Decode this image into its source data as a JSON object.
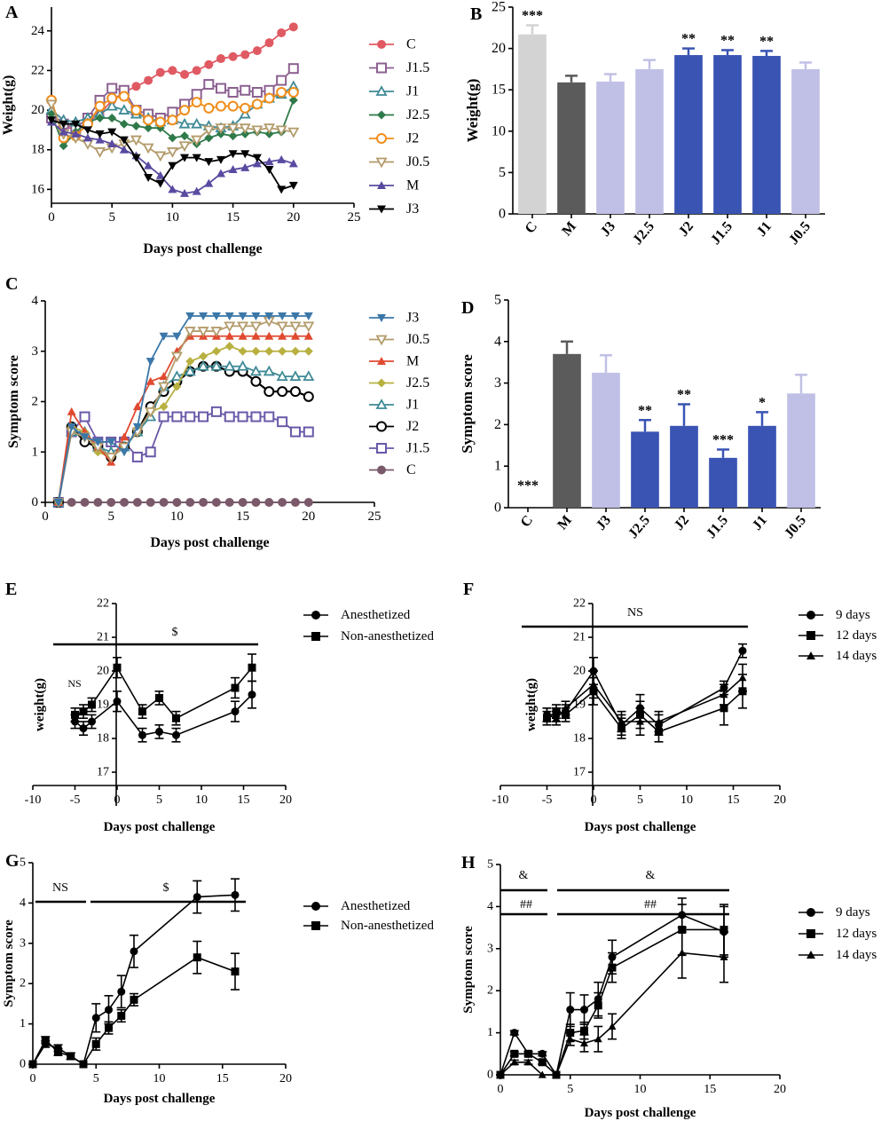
{
  "colors": {
    "C": "#e05a63",
    "J1.5": "#8b6090",
    "J1": "#3f8a96",
    "J2.5": "#2f7a4a",
    "J2": "#f08d1a",
    "J0.5": "#b39b6b",
    "M": "#5a4aa0",
    "J3": "#000000",
    "J3C": "#3b77a8",
    "J1.5C": "#6a58a8",
    "CC": "#7a5a6a",
    "barLight": "#c0c0e6",
    "barDark": "#3a54b3",
    "barGrey": "#d3d3d3",
    "barM": "#5b5b5b"
  },
  "chart_data": [
    {
      "panel": "A",
      "type": "line",
      "xlabel": "Days post challenge",
      "ylabel": "Weight(g)",
      "xlim": [
        0,
        25
      ],
      "ylim": [
        15.3,
        25.2
      ],
      "xticks": [
        0,
        5,
        10,
        15,
        20,
        25
      ],
      "yticks": [
        16,
        18,
        20,
        22,
        24
      ],
      "legend": [
        "C",
        "J1.5",
        "J1",
        "J2.5",
        "J2",
        "J0.5",
        "M",
        "J3"
      ],
      "markers": [
        "circle",
        "square",
        "triangle",
        "diamond",
        "circle-open",
        "triangle-down-open",
        "triangle",
        "triangle-down"
      ],
      "x": [
        0,
        1,
        2,
        3,
        4,
        5,
        6,
        7,
        8,
        9,
        10,
        11,
        12,
        13,
        14,
        15,
        16,
        17,
        18,
        19,
        20
      ],
      "series": [
        {
          "name": "C",
          "values": [
            19.7,
            19.2,
            19.0,
            19.4,
            19.8,
            20.5,
            20.9,
            21.2,
            21.5,
            21.9,
            22.0,
            21.8,
            22.0,
            22.3,
            22.6,
            22.7,
            22.8,
            23.0,
            23.4,
            23.9,
            24.2
          ]
        },
        {
          "name": "J1.5",
          "values": [
            19.6,
            19.3,
            19.1,
            19.6,
            20.5,
            21.1,
            21.0,
            20.0,
            19.8,
            19.6,
            19.9,
            20.3,
            20.8,
            21.3,
            21.1,
            20.9,
            21.0,
            20.9,
            21.0,
            21.5,
            22.1
          ]
        },
        {
          "name": "J1",
          "values": [
            20.0,
            19.5,
            19.4,
            19.6,
            19.8,
            20.2,
            20.0,
            19.8,
            19.6,
            19.4,
            19.5,
            19.3,
            19.3,
            19.2,
            19.1,
            19.2,
            19.8,
            20.3,
            20.6,
            20.8,
            21.2
          ]
        },
        {
          "name": "J2.5",
          "values": [
            19.8,
            18.2,
            18.9,
            19.4,
            19.6,
            19.6,
            19.3,
            19.2,
            19.1,
            19.1,
            18.6,
            18.7,
            18.3,
            18.6,
            18.8,
            18.7,
            18.8,
            18.9,
            18.8,
            18.9,
            20.5
          ]
        },
        {
          "name": "J2",
          "values": [
            20.5,
            18.6,
            18.7,
            19.3,
            20.2,
            20.6,
            20.7,
            20.0,
            19.5,
            19.4,
            19.5,
            20.0,
            20.4,
            20.1,
            20.2,
            20.2,
            20.1,
            20.3,
            20.6,
            20.9,
            20.9
          ]
        },
        {
          "name": "J0.5",
          "values": [
            20.3,
            18.8,
            18.6,
            18.3,
            17.9,
            18.1,
            18.3,
            18.5,
            18.1,
            17.7,
            17.9,
            18.2,
            18.5,
            19.0,
            19.1,
            19.1,
            19.1,
            19.0,
            19.1,
            19.0,
            18.9
          ]
        },
        {
          "name": "M",
          "values": [
            19.4,
            18.9,
            18.8,
            18.6,
            18.5,
            18.3,
            18.0,
            17.7,
            17.2,
            16.7,
            16.0,
            15.8,
            15.9,
            16.3,
            16.8,
            17.0,
            17.1,
            17.3,
            17.4,
            17.5,
            17.3
          ]
        },
        {
          "name": "J3",
          "values": [
            19.5,
            19.3,
            19.3,
            19.0,
            18.8,
            18.9,
            18.5,
            17.6,
            16.6,
            16.3,
            17.2,
            17.6,
            17.6,
            17.4,
            17.5,
            17.8,
            17.8,
            17.6,
            17.0,
            16.0,
            16.2
          ]
        }
      ]
    },
    {
      "panel": "B",
      "type": "bar",
      "ylabel": "Weight(g)",
      "ylim": [
        0,
        25
      ],
      "yticks": [
        0,
        5,
        10,
        15,
        20,
        25
      ],
      "categories": [
        "C",
        "M",
        "J3",
        "J2.5",
        "J2",
        "J1.5",
        "J1",
        "J0.5"
      ],
      "values": [
        21.7,
        15.9,
        16.0,
        17.5,
        19.2,
        19.2,
        19.1,
        17.5
      ],
      "errors": [
        1.1,
        0.8,
        0.9,
        1.1,
        0.8,
        0.6,
        0.6,
        0.8
      ],
      "annotations": [
        "***",
        "",
        "",
        "",
        "**",
        "**",
        "**",
        ""
      ]
    },
    {
      "panel": "C",
      "type": "line",
      "xlabel": "Days post challenge",
      "ylabel": "Symptom score",
      "xlim": [
        0,
        25
      ],
      "ylim": [
        0,
        4
      ],
      "xticks": [
        0,
        5,
        10,
        15,
        20,
        25
      ],
      "yticks": [
        0,
        1,
        2,
        3,
        4
      ],
      "legend": [
        "J3",
        "J0.5",
        "M",
        "J2.5",
        "J1",
        "J2",
        "J1.5",
        "C"
      ],
      "x": [
        1,
        2,
        3,
        4,
        5,
        6,
        7,
        8,
        9,
        10,
        11,
        12,
        13,
        14,
        15,
        16,
        17,
        18,
        19,
        20
      ],
      "series": [
        {
          "name": "J3",
          "values": [
            0,
            1.5,
            1.3,
            1.2,
            1.2,
            1.0,
            1.5,
            2.8,
            3.3,
            3.3,
            3.7,
            3.7,
            3.7,
            3.7,
            3.7,
            3.7,
            3.7,
            3.7,
            3.7,
            3.7
          ]
        },
        {
          "name": "J0.5",
          "values": [
            0,
            1.4,
            1.3,
            1.1,
            0.9,
            1.1,
            1.4,
            1.8,
            2.3,
            2.9,
            3.4,
            3.4,
            3.4,
            3.5,
            3.5,
            3.5,
            3.6,
            3.5,
            3.5,
            3.5
          ]
        },
        {
          "name": "M",
          "values": [
            0,
            1.8,
            1.4,
            1.1,
            0.8,
            1.3,
            1.9,
            2.4,
            2.5,
            3.0,
            3.3,
            3.3,
            3.3,
            3.3,
            3.3,
            3.3,
            3.3,
            3.3,
            3.3,
            3.3
          ]
        },
        {
          "name": "J2.5",
          "values": [
            0,
            1.5,
            1.4,
            1.0,
            0.9,
            1.1,
            1.4,
            1.8,
            1.9,
            2.3,
            2.8,
            2.9,
            3.0,
            3.1,
            3.0,
            3.0,
            3.0,
            3.0,
            3.0,
            3.0
          ]
        },
        {
          "name": "J1",
          "values": [
            0,
            1.4,
            1.4,
            1.1,
            1.0,
            1.1,
            1.4,
            1.7,
            2.3,
            2.5,
            2.6,
            2.7,
            2.7,
            2.7,
            2.7,
            2.6,
            2.6,
            2.5,
            2.5,
            2.5
          ]
        },
        {
          "name": "J2",
          "values": [
            0,
            1.5,
            1.2,
            1.1,
            0.9,
            1.1,
            1.4,
            1.9,
            2.2,
            2.4,
            2.6,
            2.7,
            2.7,
            2.6,
            2.6,
            2.4,
            2.2,
            2.2,
            2.2,
            2.1
          ]
        },
        {
          "name": "J1.5",
          "values": [
            0,
            1.4,
            1.7,
            1.2,
            1.2,
            1.2,
            0.9,
            1.0,
            1.7,
            1.7,
            1.7,
            1.7,
            1.8,
            1.7,
            1.7,
            1.7,
            1.7,
            1.6,
            1.4,
            1.4
          ]
        },
        {
          "name": "C",
          "values": [
            0,
            0,
            0,
            0,
            0,
            0,
            0,
            0,
            0,
            0,
            0,
            0,
            0,
            0,
            0,
            0,
            0,
            0,
            0,
            0
          ]
        }
      ]
    },
    {
      "panel": "D",
      "type": "bar",
      "ylabel": "Symptom score",
      "ylim": [
        0,
        5
      ],
      "yticks": [
        0,
        1,
        2,
        3,
        4,
        5
      ],
      "categories": [
        "C",
        "M",
        "J3",
        "J2.5",
        "J2",
        "J1.5",
        "J1",
        "J0.5"
      ],
      "values": [
        0,
        3.7,
        3.25,
        1.83,
        1.97,
        1.2,
        1.97,
        2.75
      ],
      "errors": [
        0,
        0.3,
        0.42,
        0.28,
        0.52,
        0.2,
        0.33,
        0.45
      ],
      "annotations": [
        "***",
        "",
        "",
        "**",
        "**",
        "***",
        "*",
        ""
      ]
    },
    {
      "panel": "E",
      "type": "line",
      "xlabel": "Days post challenge",
      "ylabel": "weight(g)",
      "xlim": [
        -10,
        20
      ],
      "ylim": [
        16,
        22
      ],
      "xticks": [
        -10,
        -5,
        0,
        5,
        10,
        15,
        20
      ],
      "yticks": [
        17,
        18,
        19,
        20,
        21,
        22
      ],
      "legend": [
        "Anesthetized",
        "Non-anesthetized"
      ],
      "annotations": [
        "NS",
        "$"
      ],
      "series": [
        {
          "name": "Anesthetized",
          "x": [
            -5,
            -4,
            -3,
            0,
            3,
            5,
            7,
            14,
            16
          ],
          "values": [
            18.5,
            18.3,
            18.5,
            19.1,
            18.1,
            18.2,
            18.1,
            18.8,
            19.3
          ],
          "errors": [
            0.2,
            0.2,
            0.2,
            0.3,
            0.2,
            0.2,
            0.2,
            0.3,
            0.4
          ]
        },
        {
          "name": "Non-anesthetized",
          "x": [
            -5,
            -4,
            -3,
            0,
            3,
            5,
            7,
            14,
            16
          ],
          "values": [
            18.7,
            18.8,
            19.0,
            20.1,
            18.8,
            19.2,
            18.6,
            19.5,
            20.1
          ],
          "errors": [
            0.2,
            0.2,
            0.2,
            0.3,
            0.2,
            0.2,
            0.2,
            0.3,
            0.4
          ]
        }
      ]
    },
    {
      "panel": "F",
      "type": "line",
      "xlabel": "Days post challenge",
      "ylabel": "weight(g)",
      "xlim": [
        -10,
        20
      ],
      "ylim": [
        16,
        22
      ],
      "xticks": [
        -10,
        -5,
        0,
        5,
        10,
        15,
        20
      ],
      "yticks": [
        17,
        18,
        19,
        20,
        21,
        22
      ],
      "legend": [
        "9 days",
        "12 days",
        "14 days"
      ],
      "annotations": [
        "NS"
      ],
      "series": [
        {
          "name": "9 days",
          "x": [
            -5,
            -4,
            -3,
            0,
            3,
            5,
            7,
            14,
            16
          ],
          "values": [
            18.7,
            18.7,
            18.8,
            20.0,
            18.4,
            18.9,
            18.4,
            19.5,
            20.6
          ],
          "errors": [
            0.2,
            0.2,
            0.2,
            0.4,
            0.3,
            0.4,
            0.3,
            0.2,
            0.2
          ]
        },
        {
          "name": "12 days",
          "x": [
            -5,
            -4,
            -3,
            0,
            3,
            5,
            7,
            14,
            16
          ],
          "values": [
            18.6,
            18.8,
            18.7,
            19.4,
            18.3,
            18.7,
            18.2,
            18.9,
            19.4
          ],
          "errors": [
            0.2,
            0.2,
            0.2,
            0.4,
            0.3,
            0.4,
            0.3,
            0.5,
            0.5
          ]
        },
        {
          "name": "14 days",
          "x": [
            -5,
            -4,
            -3,
            0,
            3,
            5,
            7,
            14,
            16
          ],
          "values": [
            18.7,
            18.6,
            18.9,
            19.6,
            18.5,
            18.5,
            18.5,
            19.3,
            19.8
          ],
          "errors": [
            0.2,
            0.2,
            0.2,
            0.4,
            0.3,
            0.4,
            0.3,
            0.3,
            0.4
          ]
        }
      ]
    },
    {
      "panel": "G",
      "type": "line",
      "xlabel": "Days post challenge",
      "ylabel": "Symptom score",
      "xlim": [
        0,
        20
      ],
      "ylim": [
        0,
        5
      ],
      "xticks": [
        0,
        5,
        10,
        15,
        20
      ],
      "yticks": [
        0,
        1,
        2,
        3,
        4,
        5
      ],
      "legend": [
        "Anesthetized",
        "Non-anesthetized"
      ],
      "annotations": [
        "NS",
        "$"
      ],
      "series": [
        {
          "name": "Anesthetized",
          "x": [
            0,
            1,
            2,
            3,
            4,
            5,
            6,
            7,
            8,
            13,
            16
          ],
          "values": [
            0,
            0.5,
            0.4,
            0.2,
            0,
            1.15,
            1.35,
            1.8,
            2.8,
            4.15,
            4.2
          ],
          "errors": [
            0,
            0.08,
            0.08,
            0.08,
            0,
            0.35,
            0.35,
            0.4,
            0.4,
            0.4,
            0.4
          ]
        },
        {
          "name": "Non-anesthetized",
          "x": [
            0,
            1,
            2,
            3,
            4,
            5,
            6,
            7,
            8,
            13,
            16
          ],
          "values": [
            0,
            0.6,
            0.3,
            0.2,
            0,
            0.5,
            0.9,
            1.2,
            1.6,
            2.65,
            2.3
          ],
          "errors": [
            0,
            0.08,
            0.08,
            0.08,
            0,
            0.15,
            0.15,
            0.15,
            0.15,
            0.4,
            0.45
          ]
        }
      ]
    },
    {
      "panel": "H",
      "type": "line",
      "xlabel": "Days post challenge",
      "ylabel": "Symptom score",
      "xlim": [
        0,
        20
      ],
      "ylim": [
        0,
        5
      ],
      "xticks": [
        0,
        5,
        10,
        15,
        20
      ],
      "yticks": [
        0,
        1,
        2,
        3,
        4,
        5
      ],
      "legend": [
        "9 days",
        "12 days",
        "14 days"
      ],
      "annotations": [
        "&",
        "&",
        "##",
        "##"
      ],
      "series": [
        {
          "name": "9 days",
          "x": [
            0,
            1,
            2,
            3,
            4,
            5,
            6,
            7,
            8,
            13,
            16
          ],
          "values": [
            0,
            1.0,
            0.5,
            0.5,
            0,
            1.55,
            1.55,
            1.8,
            2.8,
            3.8,
            3.4
          ],
          "errors": [
            0,
            0.05,
            0.05,
            0.05,
            0,
            0.4,
            0.35,
            0.4,
            0.4,
            0.4,
            0.6
          ]
        },
        {
          "name": "12 days",
          "x": [
            0,
            1,
            2,
            3,
            4,
            5,
            6,
            7,
            8,
            13,
            16
          ],
          "values": [
            0,
            0.5,
            0.5,
            0.3,
            0,
            1.0,
            1.05,
            1.65,
            2.55,
            3.45,
            3.45
          ],
          "errors": [
            0,
            0.05,
            0.05,
            0.05,
            0,
            0.2,
            0.2,
            0.3,
            0.35,
            0.6,
            0.6
          ]
        },
        {
          "name": "14 days",
          "x": [
            0,
            1,
            2,
            3,
            4,
            5,
            6,
            7,
            8,
            13,
            16
          ],
          "values": [
            0,
            0.3,
            0.3,
            0,
            0,
            0.85,
            0.75,
            0.85,
            1.15,
            2.9,
            2.8
          ],
          "errors": [
            0,
            0.05,
            0.05,
            0,
            0,
            0.15,
            0.2,
            0.3,
            0.3,
            0.6,
            0.6
          ]
        }
      ]
    }
  ]
}
